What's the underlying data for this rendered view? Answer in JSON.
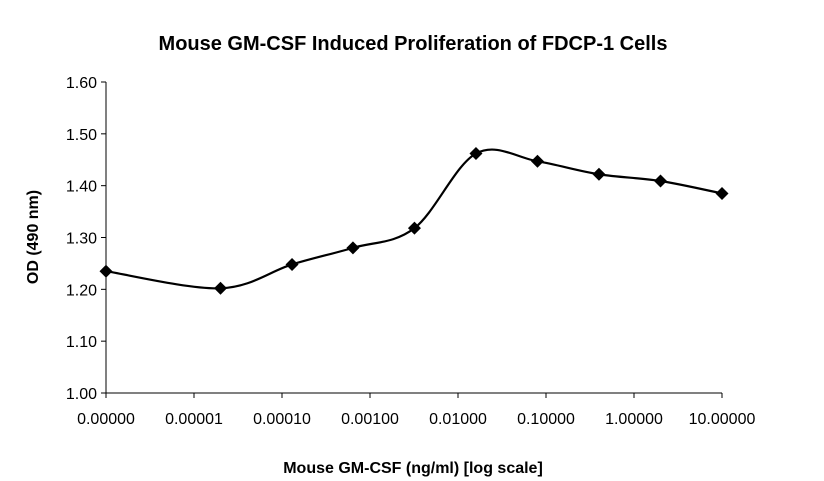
{
  "chart_data": {
    "type": "line",
    "title": "Mouse GM-CSF Induced Proliferation of FDCP-1 Cells",
    "xlabel": "Mouse GM-CSF (ng/ml) [log scale]",
    "ylabel": "OD (490 nm)",
    "x_scale": "log",
    "x_tick_labels": [
      "0.00000",
      "0.00001",
      "0.00010",
      "0.00100",
      "0.01000",
      "0.10000",
      "1.00000",
      "10.00000"
    ],
    "x_tick_values": [
      1e-06,
      1e-05,
      0.0001,
      0.001,
      0.01,
      0.1,
      1,
      10
    ],
    "xlim": [
      1e-06,
      10
    ],
    "ylim": [
      1.0,
      1.6
    ],
    "y_ticks": [
      1.0,
      1.1,
      1.2,
      1.3,
      1.4,
      1.5,
      1.6
    ],
    "y_tick_labels": [
      "1.00",
      "1.10",
      "1.20",
      "1.30",
      "1.40",
      "1.50",
      "1.60"
    ],
    "grid": false,
    "series": [
      {
        "x": [
          1e-06,
          2e-05,
          0.00013,
          0.00064,
          0.0032,
          0.016,
          0.08,
          0.4,
          2,
          10
        ],
        "y": [
          1.235,
          1.202,
          1.248,
          1.28,
          1.318,
          1.462,
          1.447,
          1.422,
          1.409,
          1.385
        ],
        "color": "#000000",
        "marker": "diamond",
        "smooth": true
      }
    ]
  }
}
